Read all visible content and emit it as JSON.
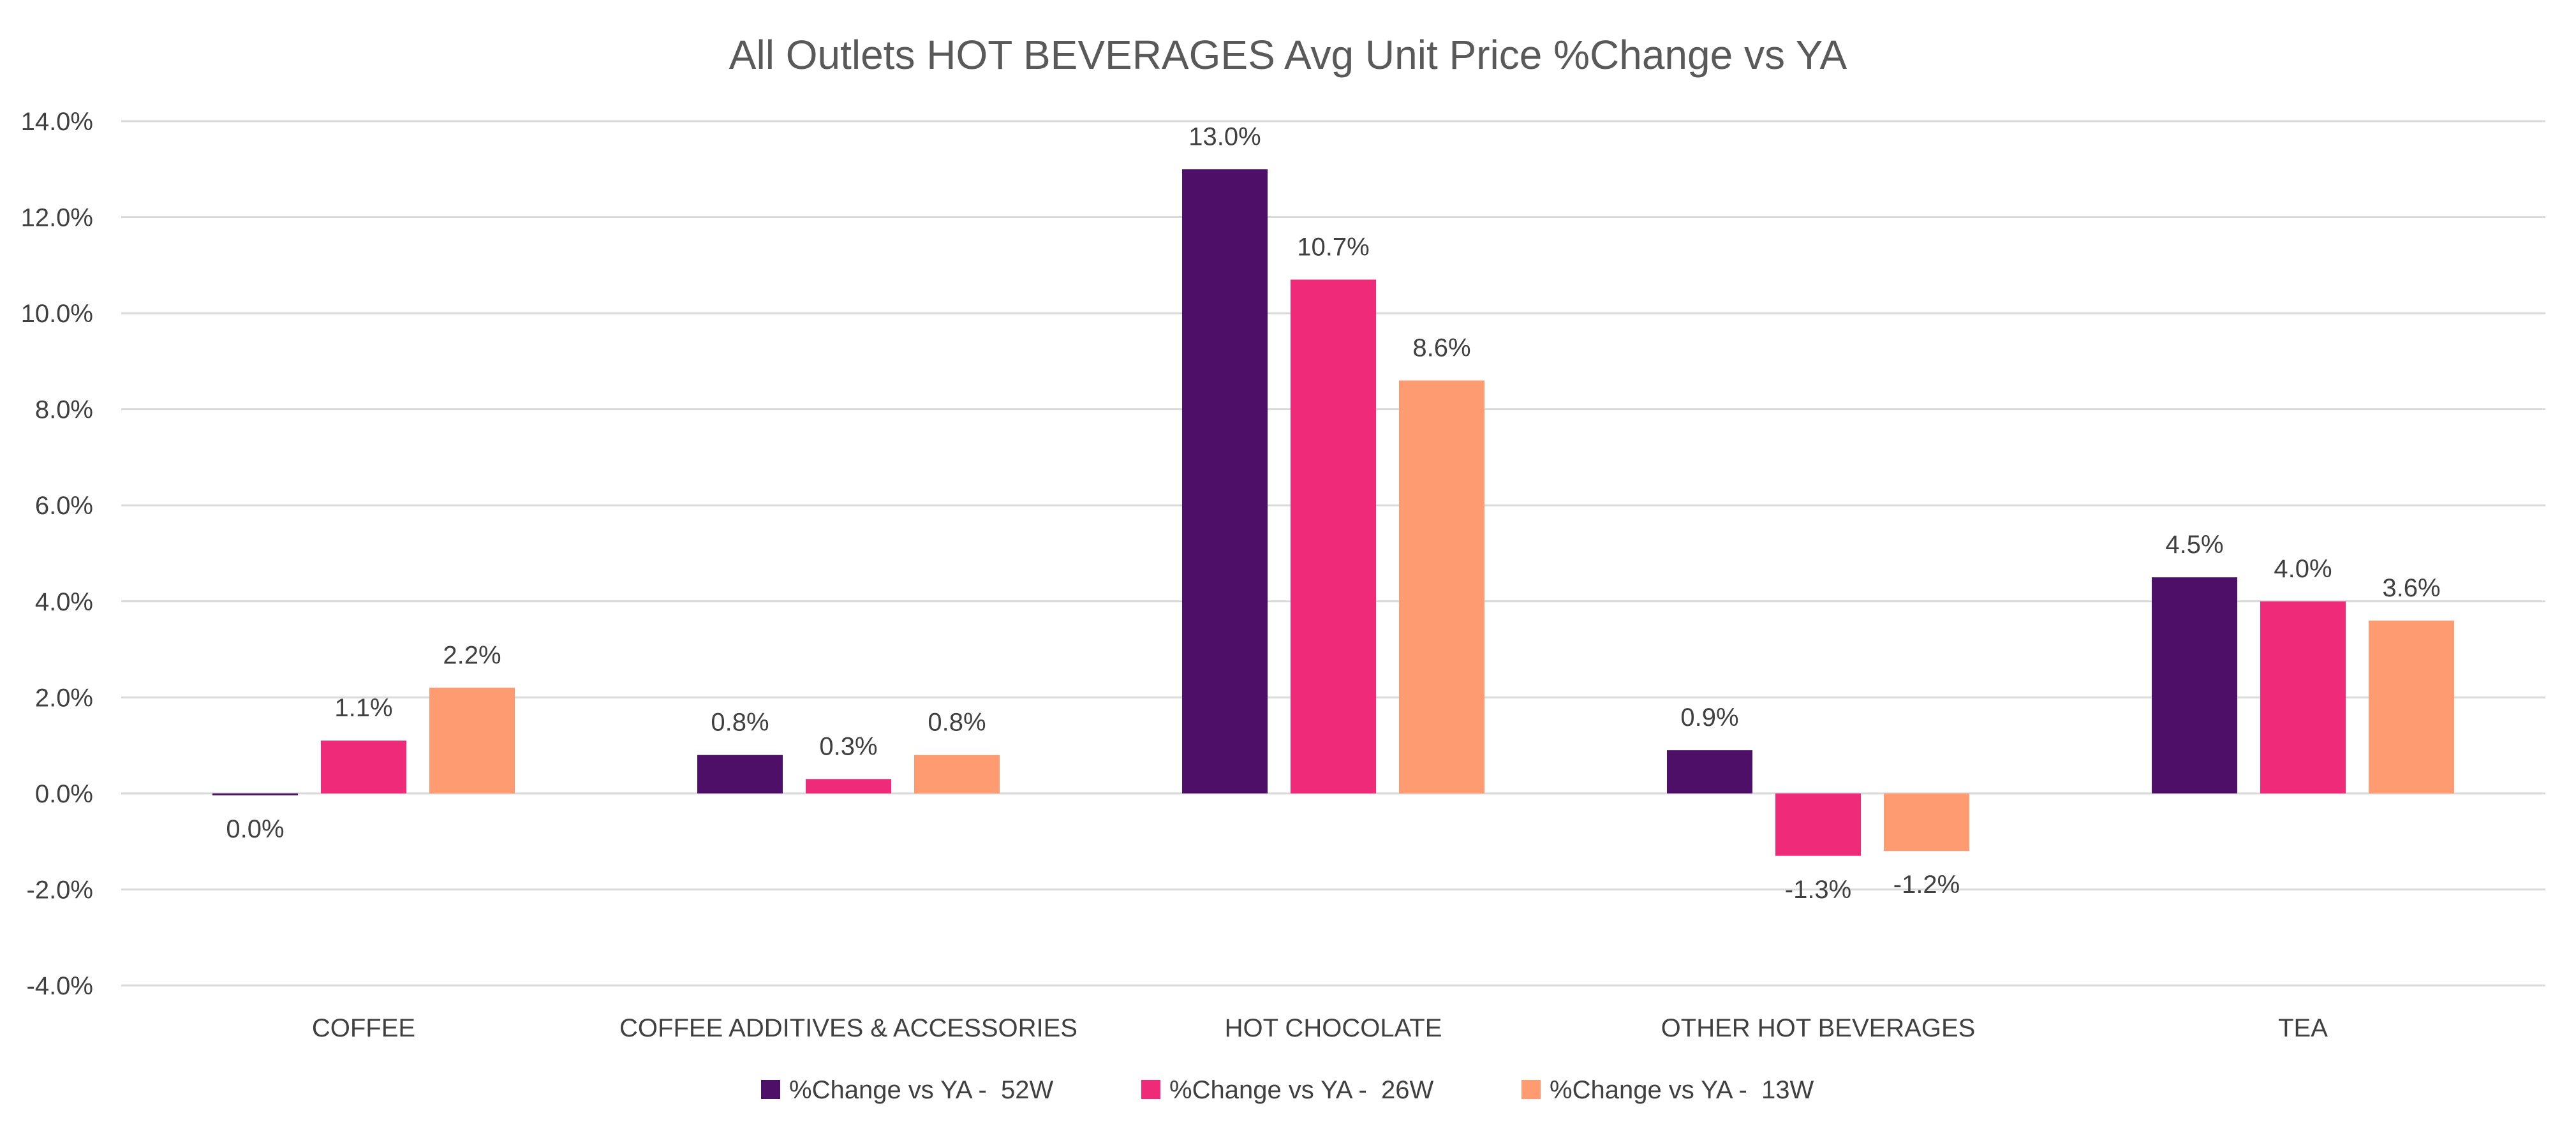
{
  "chart_data": {
    "type": "bar",
    "title": "All Outlets HOT BEVERAGES Avg Unit Price %Change vs YA",
    "categories": [
      "COFFEE",
      "COFFEE ADDITIVES & ACCESSORIES",
      "HOT CHOCOLATE",
      "OTHER HOT BEVERAGES",
      "TEA"
    ],
    "series": [
      {
        "name": "%Change vs YA -  52W",
        "color": "#4E0F68",
        "values": [
          -0.0004,
          0.008,
          0.13,
          0.009,
          0.045
        ],
        "labels": [
          "0.0%",
          "0.8%",
          "13.0%",
          "0.9%",
          "4.5%"
        ]
      },
      {
        "name": "%Change vs YA -  26W",
        "color": "#EF2A79",
        "values": [
          0.011,
          0.003,
          0.107,
          -0.013,
          0.04
        ],
        "labels": [
          "1.1%",
          "0.3%",
          "10.7%",
          "-1.3%",
          "4.0%"
        ]
      },
      {
        "name": "%Change vs YA -  13W",
        "color": "#FF9B70",
        "values": [
          0.022,
          0.008,
          0.086,
          -0.012,
          0.036
        ],
        "labels": [
          "2.2%",
          "0.8%",
          "8.6%",
          "-1.2%",
          "3.6%"
        ]
      }
    ],
    "ylim": [
      -0.04,
      0.14
    ],
    "yticks": [
      -0.04,
      -0.02,
      0.0,
      0.02,
      0.04,
      0.06,
      0.08,
      0.1,
      0.12,
      0.14
    ],
    "ytick_labels": [
      "-4.0%",
      "-2.0%",
      "0.0%",
      "2.0%",
      "4.0%",
      "6.0%",
      "8.0%",
      "10.0%",
      "12.0%",
      "14.0%"
    ],
    "xlabel": "",
    "ylabel": "",
    "grid": true,
    "legend_position": "bottom-center"
  }
}
